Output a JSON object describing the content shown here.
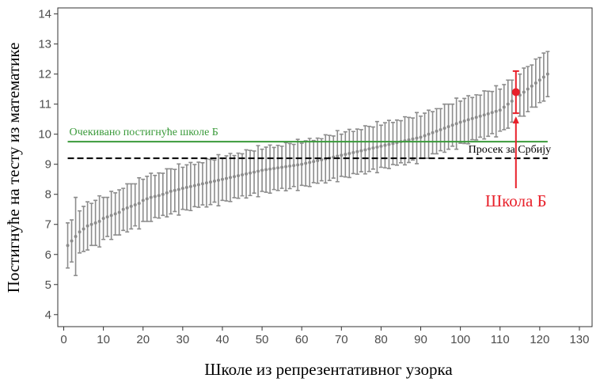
{
  "chart_data": {
    "type": "errorbar",
    "x_label": "Школе из репрезентативног узорка",
    "y_label": "Постигнуће на тесту из математике",
    "x": [
      1,
      2,
      3,
      4,
      5,
      6,
      7,
      8,
      9,
      10,
      11,
      12,
      13,
      14,
      15,
      16,
      17,
      18,
      19,
      20,
      21,
      22,
      23,
      24,
      25,
      26,
      27,
      28,
      29,
      30,
      31,
      32,
      33,
      34,
      35,
      36,
      37,
      38,
      39,
      40,
      41,
      42,
      43,
      44,
      45,
      46,
      47,
      48,
      49,
      50,
      51,
      52,
      53,
      54,
      55,
      56,
      57,
      58,
      59,
      60,
      61,
      62,
      63,
      64,
      65,
      66,
      67,
      68,
      69,
      70,
      71,
      72,
      73,
      74,
      75,
      76,
      77,
      78,
      79,
      80,
      81,
      82,
      83,
      84,
      85,
      86,
      87,
      88,
      89,
      90,
      91,
      92,
      93,
      94,
      95,
      96,
      97,
      98,
      99,
      100,
      101,
      102,
      103,
      104,
      105,
      106,
      107,
      108,
      109,
      110,
      111,
      112,
      113,
      114,
      115,
      116,
      117,
      118,
      119,
      120,
      121,
      122
    ],
    "values": [
      6.3,
      6.45,
      6.6,
      6.75,
      6.85,
      6.95,
      7.0,
      7.05,
      7.1,
      7.2,
      7.25,
      7.3,
      7.35,
      7.4,
      7.5,
      7.55,
      7.6,
      7.65,
      7.7,
      7.8,
      7.85,
      7.9,
      7.93,
      7.96,
      8.0,
      8.05,
      8.1,
      8.13,
      8.16,
      8.2,
      8.23,
      8.26,
      8.29,
      8.32,
      8.35,
      8.38,
      8.41,
      8.44,
      8.47,
      8.5,
      8.53,
      8.56,
      8.59,
      8.62,
      8.65,
      8.68,
      8.71,
      8.74,
      8.77,
      8.8,
      8.82,
      8.84,
      8.86,
      8.88,
      8.9,
      8.92,
      8.94,
      8.96,
      8.98,
      9.0,
      9.03,
      9.06,
      9.09,
      9.12,
      9.15,
      9.18,
      9.21,
      9.24,
      9.27,
      9.3,
      9.33,
      9.36,
      9.39,
      9.42,
      9.45,
      9.48,
      9.51,
      9.54,
      9.57,
      9.6,
      9.63,
      9.66,
      9.69,
      9.72,
      9.75,
      9.78,
      9.81,
      9.84,
      9.87,
      9.9,
      9.95,
      10.0,
      10.05,
      10.1,
      10.15,
      10.2,
      10.25,
      10.3,
      10.35,
      10.4,
      10.44,
      10.48,
      10.52,
      10.56,
      10.6,
      10.64,
      10.68,
      10.72,
      10.76,
      10.8,
      10.9,
      11.0,
      11.1,
      11.4,
      11.3,
      11.4,
      11.5,
      11.6,
      11.7,
      11.8,
      11.9,
      12.0
    ],
    "errors": [
      0.75,
      0.7,
      1.3,
      0.7,
      0.75,
      0.8,
      0.7,
      0.75,
      0.85,
      0.7,
      0.65,
      0.8,
      0.7,
      0.75,
      0.7,
      0.8,
      0.75,
      0.7,
      0.85,
      0.7,
      0.75,
      0.8,
      0.7,
      0.75,
      0.7,
      0.8,
      0.75,
      0.7,
      0.85,
      0.7,
      0.75,
      0.8,
      0.7,
      0.75,
      0.7,
      0.8,
      0.75,
      0.7,
      0.85,
      0.7,
      0.75,
      0.8,
      0.7,
      0.75,
      0.7,
      0.8,
      0.75,
      0.7,
      0.85,
      0.7,
      0.75,
      0.8,
      0.7,
      0.75,
      0.7,
      0.8,
      0.75,
      0.7,
      0.85,
      0.7,
      0.75,
      0.8,
      0.7,
      0.75,
      0.7,
      0.8,
      0.75,
      0.7,
      0.85,
      0.7,
      0.75,
      0.8,
      0.7,
      0.75,
      0.7,
      0.8,
      0.75,
      0.7,
      0.85,
      0.7,
      0.75,
      0.8,
      0.7,
      0.75,
      0.7,
      0.8,
      0.75,
      0.7,
      0.85,
      0.7,
      0.75,
      0.8,
      0.7,
      0.75,
      0.7,
      0.8,
      0.75,
      0.7,
      0.85,
      0.7,
      0.75,
      0.8,
      0.7,
      0.75,
      0.7,
      0.8,
      0.75,
      0.7,
      0.85,
      0.7,
      0.75,
      0.8,
      0.7,
      0.7,
      0.7,
      0.8,
      0.75,
      0.7,
      0.8,
      0.75,
      0.8,
      0.75
    ],
    "color": "#8c8c8c",
    "highlight_index": 113,
    "highlight_color": "#e8202a",
    "highlight_label": "Школа Б",
    "hlines": [
      {
        "value": 9.75,
        "label": "Очекивано постигнуће школе Б",
        "color": "#3a9a3a",
        "dashed": false
      },
      {
        "value": 9.2,
        "label": "Просек  за Србију",
        "color": "#000000",
        "dashed": true
      }
    ],
    "xlim": [
      -1.5,
      133.2
    ],
    "ylim": [
      3.6,
      14.2
    ],
    "xticks": [
      0,
      10,
      20,
      30,
      40,
      50,
      60,
      70,
      80,
      90,
      100,
      110,
      120,
      130
    ],
    "yticks": [
      4,
      5,
      6,
      7,
      8,
      9,
      10,
      11,
      12,
      13,
      14
    ]
  }
}
